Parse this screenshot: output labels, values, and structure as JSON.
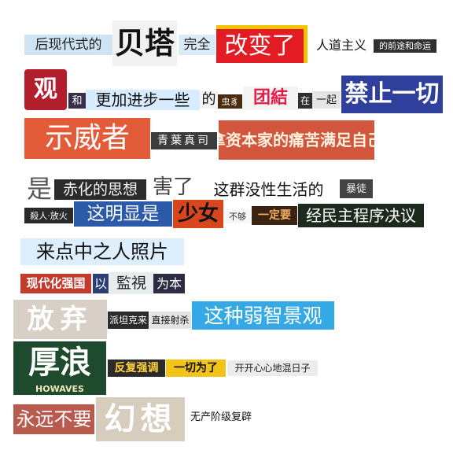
{
  "clips": {
    "r1": {
      "a": "后现代式的",
      "b": "贝塔",
      "c": "完全",
      "d": "改变了",
      "e": "人道主义",
      "f": "的前途和命运"
    },
    "r2": {
      "a": "观",
      "b": "和",
      "c": "更加进步一些",
      "d": "的",
      "e": "虫豸",
      "f": "团結",
      "g": "在",
      "h": "一起",
      "i": "禁止一切"
    },
    "r3": {
      "a": "示威者",
      "b": "青葉真司",
      "c": "拿资本家的痛苦满足自己"
    },
    "r4": {
      "a": "是",
      "b": "赤化的思想",
      "c": "害了",
      "d": "这群没性生活的",
      "e": "暴徒"
    },
    "r5": {
      "a": "殺人·放火",
      "b": "这明显是",
      "c": "少女",
      "d": "不够",
      "e": "一定要",
      "f": "经民主程序决议"
    },
    "r6": {
      "a": "来点中之人照片"
    },
    "r7": {
      "a": "现代化强国",
      "b": "以",
      "c": "監視",
      "d": "为本"
    },
    "r8": {
      "a": "放弃",
      "b": "派坦克来",
      "c": "直接射杀",
      "d": "这种弱智景观"
    },
    "r9": {
      "a": "厚浪",
      "a_sub": "HOWAVES",
      "b": "反复强调",
      "c": "一切为了",
      "d": "开开心心地混日子"
    },
    "r10": {
      "a": "永远不要",
      "b": "幻想",
      "c": "无产阶级复辟"
    }
  }
}
